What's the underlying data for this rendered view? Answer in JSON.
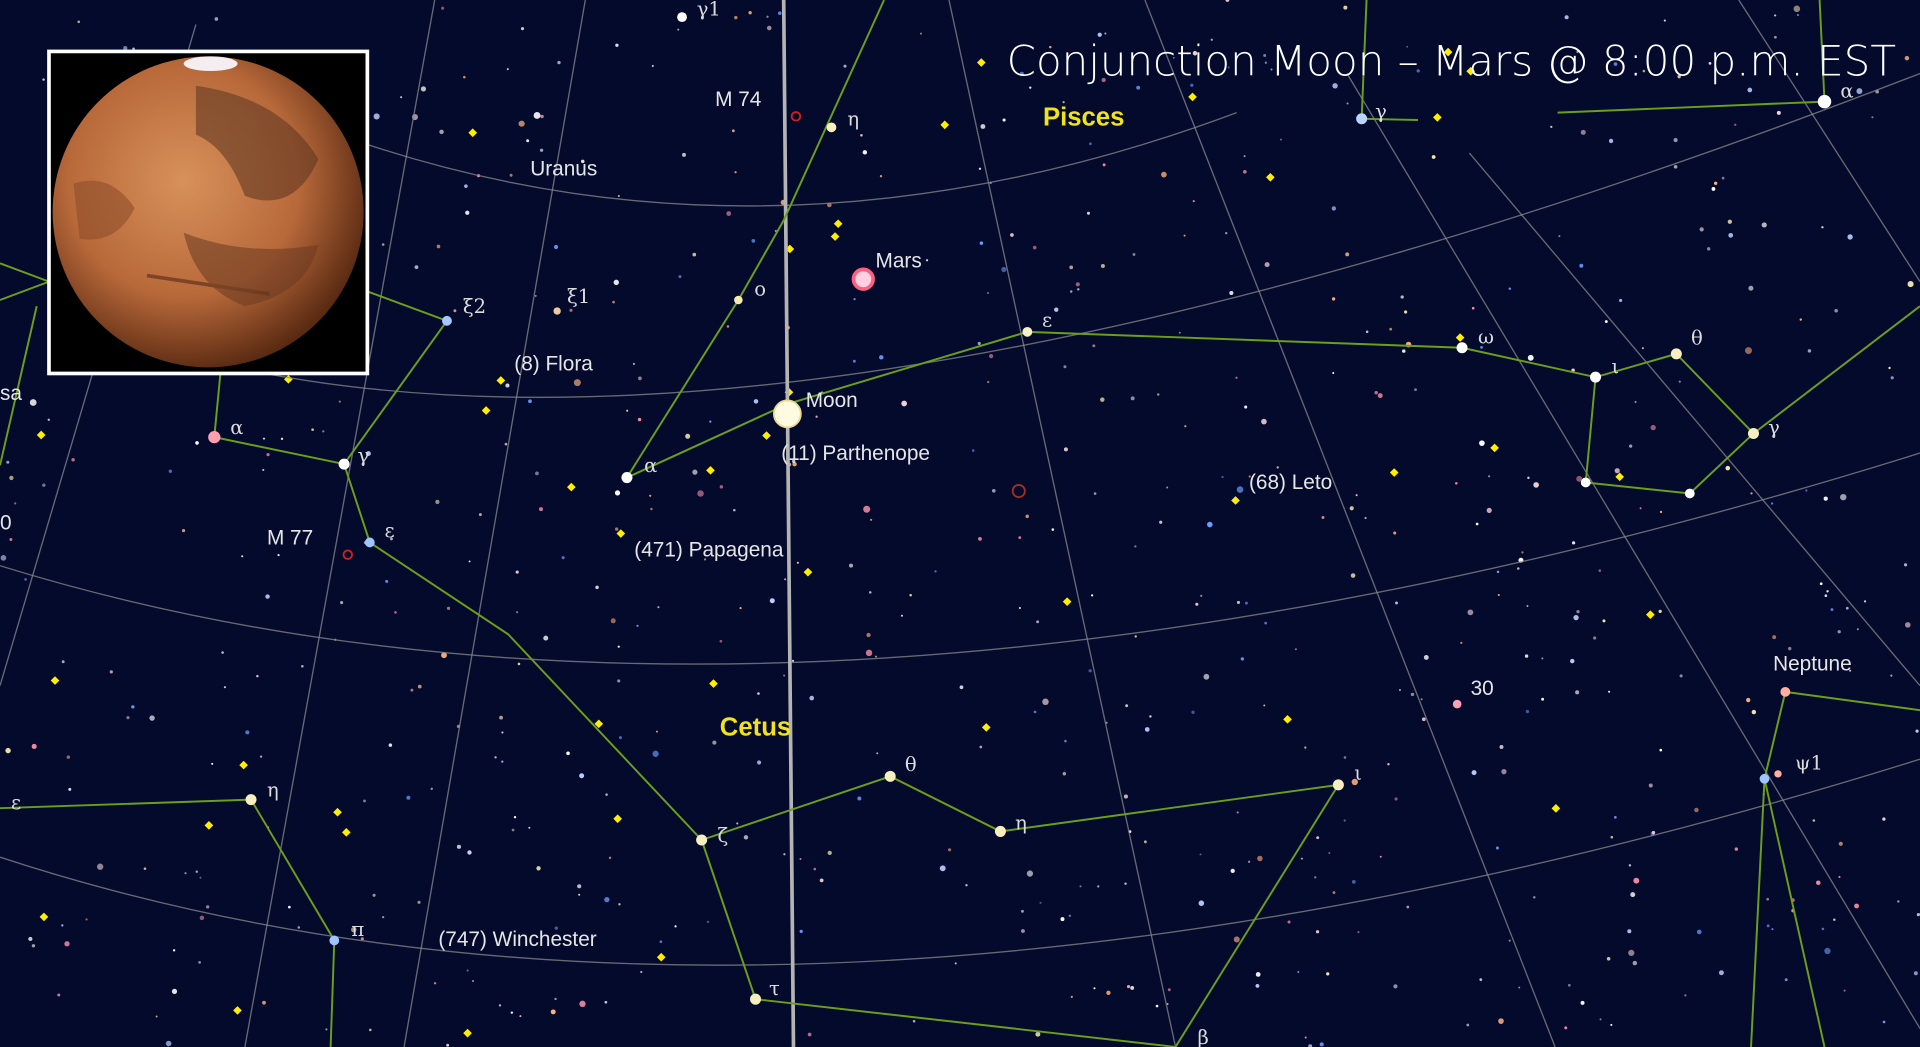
{
  "title": "Conjunction Moon – Mars @ 8:00 p.m. EST",
  "constellations": [
    "Pisces",
    "Cetus"
  ],
  "planets": [
    "Uranus",
    "Mars",
    "Moon",
    "Neptune"
  ],
  "asteroids": [
    "(8) Flora",
    "(11) Parthenope",
    "(68) Leto",
    "(471) Papagena",
    "(747) Winchester"
  ],
  "deep_sky_objects": [
    "M 74",
    "M 77"
  ],
  "star_labels": [
    "γ1",
    "η",
    "ο",
    "ξ1",
    "ξ2",
    "α",
    "γ",
    "ε",
    "α",
    "ε",
    "ω",
    "ι",
    "θ",
    "γ",
    "γ",
    "α",
    "θ",
    "η",
    "ι",
    "ζ",
    "η",
    "ε",
    "π",
    "τ",
    "β",
    "ψ1",
    "30",
    "sa",
    "0"
  ]
}
